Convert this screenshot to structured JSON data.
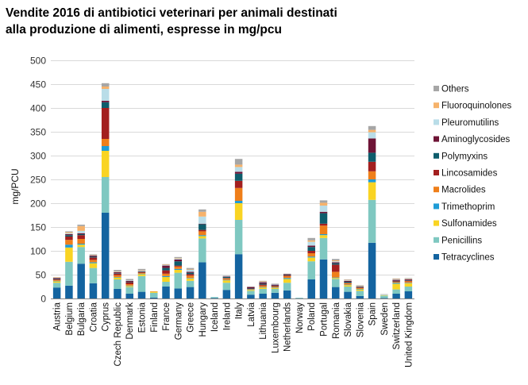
{
  "title_line1": "Vendite 2016 di antibiotici veterinari per animali destinati",
  "title_line2": "alla produzione di alimenti, espresse in mg/pcu",
  "chart_data": {
    "type": "bar",
    "stacked": true,
    "title": "Vendite 2016 di antibiotici veterinari per animali destinati alla produzione di alimenti, espresse in mg/pcu",
    "xlabel": "",
    "ylabel": "mg/PCU",
    "ylim": [
      0,
      500
    ],
    "yticks": [
      0,
      50,
      100,
      150,
      200,
      250,
      300,
      350,
      400,
      450,
      500
    ],
    "grid": true,
    "legend_position": "right",
    "categories": [
      "Austria",
      "Belgium",
      "Bulgaria",
      "Croatia",
      "Cyprus",
      "Czech Republic",
      "Denmark",
      "Estonia",
      "Finland",
      "France",
      "Germany",
      "Greece",
      "Hungary",
      "Iceland",
      "Ireland",
      "Italy",
      "Latvia",
      "Lithuania",
      "Luxembourg",
      "Netherlands",
      "Norway",
      "Poland",
      "Portugal",
      "Romania",
      "Slovakia",
      "Slovenia",
      "Spain",
      "Sweden",
      "Switzerland",
      "United Kingdom"
    ],
    "series": [
      {
        "name": "Tetracyclines",
        "color": "#1464a0",
        "values": [
          23,
          27,
          73,
          32,
          180,
          20,
          10,
          14,
          2,
          25,
          21,
          24,
          76,
          1,
          18,
          93,
          8,
          10,
          12,
          17,
          0.5,
          40,
          82,
          24,
          14,
          5,
          117,
          1,
          10,
          15
        ]
      },
      {
        "name": "Penicillins",
        "color": "#7fc8c1",
        "values": [
          10,
          50,
          35,
          32,
          75,
          20,
          14,
          33,
          10,
          10,
          33,
          13,
          50,
          2,
          15,
          72,
          8,
          10,
          8,
          16,
          1,
          38,
          45,
          17,
          11,
          11,
          90,
          5,
          9,
          10
        ]
      },
      {
        "name": "Sulfonamides",
        "color": "#f9d423",
        "values": [
          3,
          30,
          5,
          10,
          55,
          4,
          2,
          4,
          2,
          10,
          6,
          5,
          5,
          0,
          5,
          35,
          2,
          3,
          2,
          8,
          0,
          8,
          6,
          2,
          3,
          3,
          37,
          1,
          12,
          7
        ]
      },
      {
        "name": "Trimethoprim",
        "color": "#1f9cd6",
        "values": [
          1,
          6,
          2,
          2,
          10,
          1,
          1,
          1,
          0,
          2,
          2,
          1,
          2,
          0,
          1,
          5,
          1,
          1,
          1,
          2,
          0,
          2,
          2,
          1,
          1,
          1,
          6,
          0,
          2,
          1
        ]
      },
      {
        "name": "Macrolides",
        "color": "#ef7f1a",
        "values": [
          2,
          10,
          10,
          5,
          15,
          4,
          3,
          2,
          1,
          5,
          5,
          5,
          8,
          0,
          3,
          27,
          1,
          3,
          2,
          4,
          0,
          7,
          18,
          12,
          3,
          2,
          17,
          0,
          2,
          3
        ]
      },
      {
        "name": "Lincosamides",
        "color": "#a31f1f",
        "values": [
          1,
          7,
          8,
          5,
          65,
          3,
          4,
          1,
          0,
          7,
          2,
          3,
          3,
          0,
          1,
          15,
          0,
          2,
          1,
          2,
          0,
          5,
          4,
          15,
          1,
          1,
          20,
          0,
          1,
          1
        ]
      },
      {
        "name": "Polymyxins",
        "color": "#0e5d6c",
        "values": [
          1,
          3,
          2,
          2,
          12,
          1,
          1,
          1,
          0,
          5,
          9,
          3,
          12,
          0,
          2,
          15,
          1,
          2,
          1,
          1,
          0,
          8,
          22,
          3,
          2,
          1,
          19,
          0,
          1,
          1
        ]
      },
      {
        "name": "Aminoglycosides",
        "color": "#6e1436",
        "values": [
          2,
          2,
          2,
          2,
          3,
          2,
          2,
          1,
          0,
          5,
          4,
          2,
          1,
          0,
          1,
          4,
          3,
          3,
          2,
          1,
          0,
          3,
          3,
          2,
          2,
          1,
          30,
          0,
          2,
          2
        ]
      },
      {
        "name": "Pleuromutilins",
        "color": "#b9dde8",
        "values": [
          1,
          2,
          5,
          1,
          25,
          1,
          1,
          1,
          0,
          1,
          2,
          4,
          15,
          0,
          1,
          10,
          0,
          1,
          1,
          0,
          0,
          8,
          13,
          2,
          1,
          1,
          13,
          1,
          1,
          1
        ]
      },
      {
        "name": "Fluoroquinolones",
        "color": "#f6b26b",
        "values": [
          1,
          2,
          10,
          1,
          5,
          1,
          0,
          1,
          0,
          1,
          1,
          1,
          10,
          0,
          0,
          5,
          0,
          1,
          0,
          0,
          0,
          3,
          6,
          2,
          1,
          1,
          5,
          0,
          1,
          1
        ]
      },
      {
        "name": "Others",
        "color": "#a6a6a6",
        "values": [
          0,
          2,
          3,
          1,
          7,
          3,
          3,
          3,
          0,
          1,
          2,
          3,
          5,
          0,
          1,
          12,
          1,
          1,
          1,
          1,
          0,
          5,
          5,
          3,
          1,
          1,
          8,
          1,
          1,
          1
        ]
      }
    ]
  }
}
